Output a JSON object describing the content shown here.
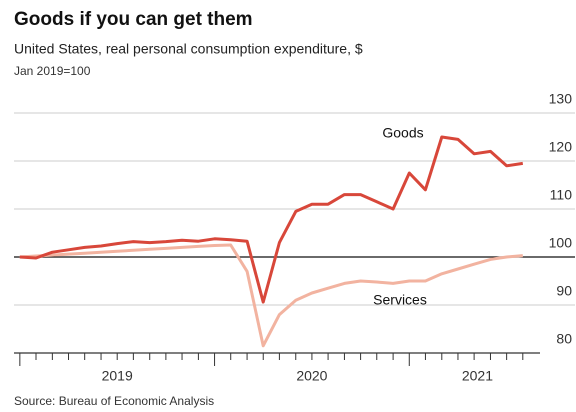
{
  "chart_data": {
    "type": "line",
    "title": "Goods if you can get them",
    "subtitle": "United States, real personal consumption expenditure, $",
    "note": "Jan 2019=100",
    "source": "Source: Bureau of Economic Analysis",
    "x": [
      2019,
      2019.083,
      2019.167,
      2019.25,
      2019.333,
      2019.417,
      2019.5,
      2019.583,
      2019.667,
      2019.75,
      2019.833,
      2019.917,
      2020,
      2020.083,
      2020.167,
      2020.25,
      2020.333,
      2020.417,
      2020.5,
      2020.583,
      2020.667,
      2020.75,
      2020.833,
      2020.917,
      2021,
      2021.083,
      2021.167,
      2021.25,
      2021.333,
      2021.417,
      2021.5,
      2021.583
    ],
    "series": [
      {
        "name": "Goods",
        "color": "#d8473a",
        "values": [
          100,
          99.8,
          101,
          101.5,
          102,
          102.3,
          102.8,
          103.2,
          103,
          103.2,
          103.5,
          103.3,
          103.8,
          103.6,
          103.3,
          90.6,
          103,
          109.5,
          111,
          111,
          113,
          113,
          111.5,
          110,
          117.5,
          114,
          125,
          124.5,
          121.5,
          122,
          119,
          119.5
        ]
      },
      {
        "name": "Services",
        "color": "#f2b3a0",
        "values": [
          100,
          100.2,
          100.4,
          100.6,
          100.8,
          101,
          101.2,
          101.4,
          101.6,
          101.8,
          102,
          102.2,
          102.4,
          102.5,
          97,
          81.5,
          88,
          91,
          92.5,
          93.5,
          94.5,
          95,
          94.8,
          94.5,
          95,
          95,
          96.5,
          97.5,
          98.5,
          99.5,
          100,
          100.3
        ]
      }
    ],
    "xlim": [
      2018.97,
      2021.62
    ],
    "xticks": [
      {
        "value": 2019.5,
        "label": "2019"
      },
      {
        "value": 2020.5,
        "label": "2020"
      },
      {
        "value": 2021.35,
        "label": "2021"
      }
    ],
    "ylim": [
      80,
      130
    ],
    "yticks": [
      80,
      90,
      100,
      110,
      120,
      130
    ],
    "grid": true
  }
}
